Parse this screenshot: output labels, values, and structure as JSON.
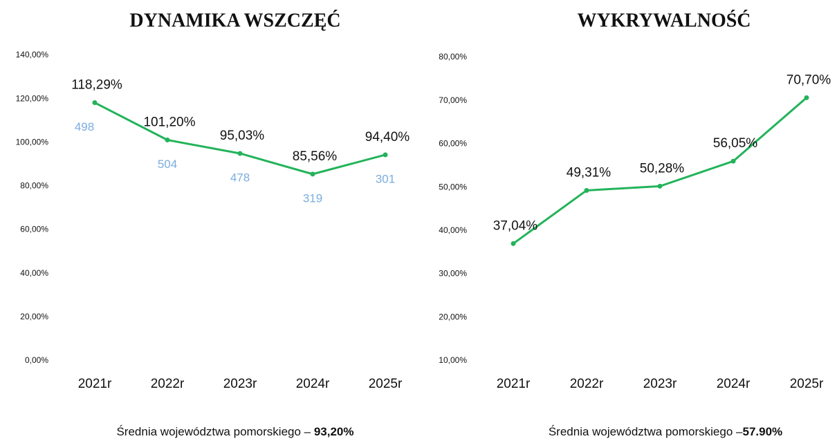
{
  "chart_data": [
    {
      "type": "line",
      "title": "DYNAMIKA WSZCZĘĆ",
      "categories": [
        "2021r",
        "2022r",
        "2023r",
        "2024r",
        "2025r"
      ],
      "series": [
        {
          "color": "#22b35a",
          "values": [
            118.29,
            101.2,
            95.03,
            85.56,
            94.4
          ],
          "value_labels": [
            "118,29%",
            "101,20%",
            "95,03%",
            "85,56%",
            "94,40%"
          ],
          "counts": [
            498,
            504,
            478,
            319,
            301
          ],
          "counts_color": "#7aade0"
        }
      ],
      "ylim": [
        0,
        140
      ],
      "yticks": [
        {
          "value": 0,
          "label": "0,00%"
        },
        {
          "value": 20,
          "label": "20,00%"
        },
        {
          "value": 40,
          "label": "40,00%"
        },
        {
          "value": 60,
          "label": "60,00%"
        },
        {
          "value": 80,
          "label": "80,00%"
        },
        {
          "value": 100,
          "label": "100,00%"
        },
        {
          "value": 120,
          "label": "120,00%"
        },
        {
          "value": 140,
          "label": "140,00%"
        }
      ],
      "grid": false,
      "average_prefix": "Średnia województwa pomorskiego – ",
      "average": {
        "value": 93.2,
        "label": "93,20%"
      }
    },
    {
      "type": "line",
      "title": "WYKRYWALNOŚĆ",
      "categories": [
        "2021r",
        "2022r",
        "2023r",
        "2024r",
        "2025r"
      ],
      "series": [
        {
          "color": "#22b35a",
          "values": [
            37.04,
            49.31,
            50.28,
            56.05,
            70.7
          ],
          "value_labels": [
            "37,04%",
            "49,31%",
            "50,28%",
            "56,05%",
            "70,70%"
          ]
        }
      ],
      "ylim": [
        10,
        80
      ],
      "yticks": [
        {
          "value": 10,
          "label": "10,00%"
        },
        {
          "value": 20,
          "label": "20,00%"
        },
        {
          "value": 30,
          "label": "30,00%"
        },
        {
          "value": 40,
          "label": "40,00%"
        },
        {
          "value": 50,
          "label": "50,00%"
        },
        {
          "value": 60,
          "label": "60,00%"
        },
        {
          "value": 70,
          "label": "70,00%"
        },
        {
          "value": 80,
          "label": "80,00%"
        }
      ],
      "grid": false,
      "average_prefix": "Średnia województwa pomorskiego –",
      "average": {
        "value": 57.9,
        "label": "57.90%"
      }
    }
  ]
}
